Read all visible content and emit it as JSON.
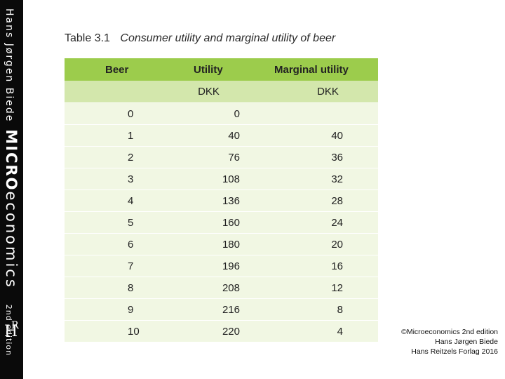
{
  "spine": {
    "author": "Hans Jørgen Biede",
    "title_bold": "MICRO",
    "title_rest": "economics",
    "edition": "2nd edition",
    "logo_h": "H",
    "logo_r": "R"
  },
  "table": {
    "number": "Table 3.1",
    "caption": "Consumer utility and marginal utility of beer",
    "headers": [
      "Beer",
      "Utility",
      "Marginal utility"
    ],
    "units": [
      "",
      "DKK",
      "DKK"
    ],
    "rows": [
      {
        "beer": "0",
        "utility": "0",
        "marginal": ""
      },
      {
        "beer": "1",
        "utility": "40",
        "marginal": "40"
      },
      {
        "beer": "2",
        "utility": "76",
        "marginal": "36"
      },
      {
        "beer": "3",
        "utility": "108",
        "marginal": "32"
      },
      {
        "beer": "4",
        "utility": "136",
        "marginal": "28"
      },
      {
        "beer": "5",
        "utility": "160",
        "marginal": "24"
      },
      {
        "beer": "6",
        "utility": "180",
        "marginal": "20"
      },
      {
        "beer": "7",
        "utility": "196",
        "marginal": "16"
      },
      {
        "beer": "8",
        "utility": "208",
        "marginal": "12"
      },
      {
        "beer": "9",
        "utility": "216",
        "marginal": "8"
      },
      {
        "beer": "10",
        "utility": "220",
        "marginal": "4"
      }
    ]
  },
  "credit": {
    "line1": "©Microeconomics 2nd edition",
    "line2": "Hans Jørgen Biede",
    "line3": "Hans Reitzels Forlag 2016"
  },
  "colors": {
    "header": "#9ccc4c",
    "units_row": "#d3e7ac",
    "body_row": "#f1f7e3",
    "spine": "#0a0a0a"
  }
}
